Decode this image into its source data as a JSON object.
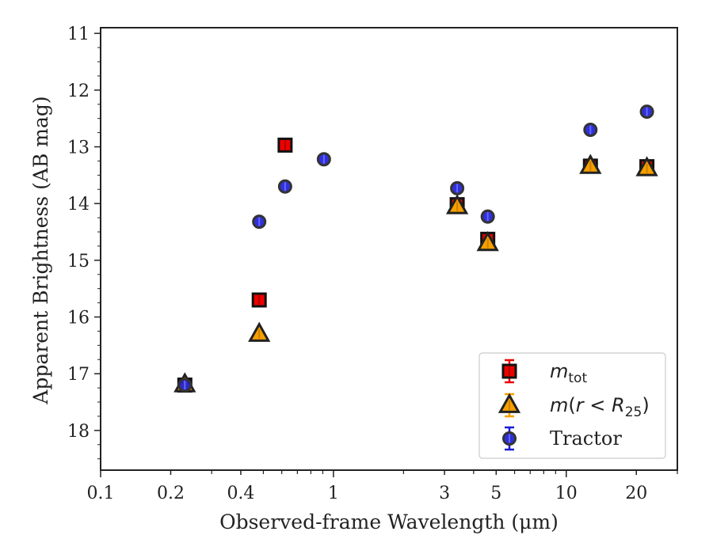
{
  "chart_data": {
    "type": "scatter",
    "xlabel": "Observed-frame Wavelength (μm)",
    "ylabel": "Apparent Brightness (AB mag)",
    "x_scale": "log",
    "xlim": [
      0.1,
      30
    ],
    "ylim": [
      18.7,
      10.9
    ],
    "y_inverted": true,
    "x_ticks": [
      0.1,
      0.2,
      0.4,
      1,
      3,
      5,
      10,
      20
    ],
    "x_tick_labels": [
      "0.1",
      "0.2",
      "0.4",
      "1",
      "3",
      "5",
      "10",
      "20"
    ],
    "y_ticks": [
      11,
      12,
      13,
      14,
      15,
      16,
      17,
      18
    ],
    "y_tick_labels": [
      "11",
      "12",
      "13",
      "14",
      "15",
      "16",
      "17",
      "18"
    ],
    "grid": false,
    "legend": {
      "position": "lower right",
      "entries": [
        {
          "series": 0,
          "label_html": "<tspan class='legend-math'>m</tspan><tspan dy='6' font-size='17' font-family='DejaVu Sans, sans-serif'>tot</tspan>"
        },
        {
          "series": 1,
          "label_html": "<tspan class='legend-math'>m</tspan><tspan font-family='DejaVu Sans, sans-serif'>(</tspan><tspan class='legend-math'>r</tspan><tspan font-family='DejaVu Sans, sans-serif'> &lt; </tspan><tspan class='legend-math'>R</tspan><tspan dy='6' font-size='17' font-family='DejaVu Sans, sans-serif'>25</tspan><tspan dy='-6' font-family='DejaVu Sans, sans-serif'>)</tspan>"
        },
        {
          "series": 2,
          "label": "Tractor"
        }
      ]
    },
    "series": [
      {
        "name": "m_tot",
        "marker": "square",
        "color": "#ee0000",
        "errorbar_color": "#ee0000",
        "points": [
          {
            "x": 0.23,
            "y": 17.2
          },
          {
            "x": 0.48,
            "y": 15.7
          },
          {
            "x": 0.62,
            "y": 12.97
          },
          {
            "x": 3.4,
            "y": 14.02
          },
          {
            "x": 4.6,
            "y": 14.63
          },
          {
            "x": 12.7,
            "y": 13.34
          },
          {
            "x": 22.2,
            "y": 13.35
          }
        ]
      },
      {
        "name": "m(r < R25)",
        "marker": "triangle",
        "color": "#f5a000",
        "errorbar_color": "#f5a000",
        "points": [
          {
            "x": 0.23,
            "y": 17.19
          },
          {
            "x": 0.48,
            "y": 16.3
          },
          {
            "x": 3.4,
            "y": 14.05
          },
          {
            "x": 4.6,
            "y": 14.7
          },
          {
            "x": 12.7,
            "y": 13.34
          },
          {
            "x": 22.2,
            "y": 13.38
          }
        ]
      },
      {
        "name": "Tractor",
        "marker": "circle",
        "color": "#1b1bd6",
        "errorbar_color": "#1b1bd6",
        "points": [
          {
            "x": 0.23,
            "y": 17.2
          },
          {
            "x": 0.48,
            "y": 14.32
          },
          {
            "x": 0.62,
            "y": 13.7
          },
          {
            "x": 0.91,
            "y": 13.22
          },
          {
            "x": 3.4,
            "y": 13.73
          },
          {
            "x": 4.6,
            "y": 14.23
          },
          {
            "x": 12.7,
            "y": 12.7
          },
          {
            "x": 22.2,
            "y": 12.38
          }
        ]
      }
    ]
  }
}
